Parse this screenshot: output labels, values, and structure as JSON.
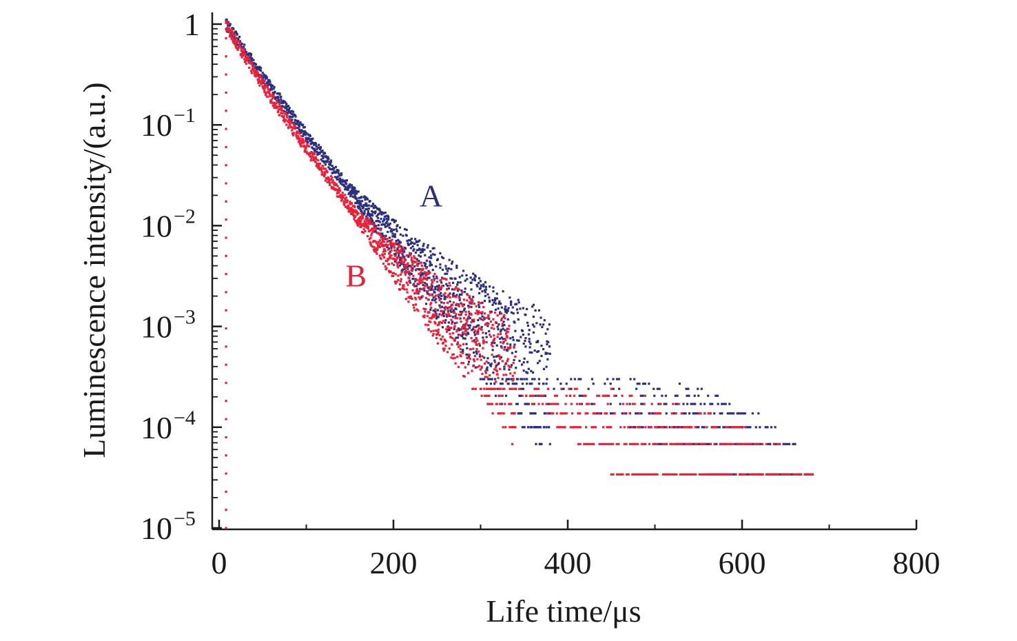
{
  "chart_data": {
    "type": "scatter",
    "title": "",
    "xlabel": "Life time/μs",
    "ylabel": "Luminescence intensity/(a.u.)",
    "xlim": [
      0,
      800
    ],
    "ylim": [
      1e-05,
      1
    ],
    "yscale": "log",
    "grid": false,
    "xticks": [
      {
        "value": 0,
        "label": "0"
      },
      {
        "value": 200,
        "label": "200"
      },
      {
        "value": 400,
        "label": "400"
      },
      {
        "value": 600,
        "label": "600"
      },
      {
        "value": 800,
        "label": "800"
      }
    ],
    "yticks": [
      {
        "value": 1,
        "base": "1",
        "exp": ""
      },
      {
        "value": 0.1,
        "base": "10",
        "exp": "−1"
      },
      {
        "value": 0.01,
        "base": "10",
        "exp": "−2"
      },
      {
        "value": 0.001,
        "base": "10",
        "exp": "−3"
      },
      {
        "value": 0.0001,
        "base": "10",
        "exp": "−4"
      },
      {
        "value": 1e-05,
        "base": "10",
        "exp": "−5"
      }
    ],
    "series": [
      {
        "name": "A",
        "color": "#2b2f7e",
        "points": [
          [
            8,
            1.0
          ],
          [
            20,
            0.72
          ],
          [
            40,
            0.4
          ],
          [
            60,
            0.23
          ],
          [
            80,
            0.135
          ],
          [
            100,
            0.08
          ],
          [
            120,
            0.048
          ],
          [
            140,
            0.029
          ],
          [
            160,
            0.018
          ],
          [
            180,
            0.0115
          ],
          [
            200,
            0.0074
          ],
          [
            220,
            0.0048
          ],
          [
            240,
            0.0032
          ],
          [
            260,
            0.0021
          ],
          [
            280,
            0.00142
          ],
          [
            300,
            0.00098
          ],
          [
            320,
            0.00068
          ],
          [
            340,
            0.00048
          ],
          [
            360,
            0.00036
          ],
          [
            380,
            0.00029
          ]
        ],
        "floor_levels": [
          3.4e-05,
          6.8e-05,
          0.0001,
          0.000137,
          0.00017,
          0.000205,
          0.00024,
          0.00027,
          0.0003
        ],
        "tail_end": 682,
        "label_at": [
          230,
          0.0155
        ]
      },
      {
        "name": "B",
        "color": "#e8213a",
        "points": [
          [
            8,
            1.0
          ],
          [
            20,
            0.65
          ],
          [
            40,
            0.34
          ],
          [
            60,
            0.185
          ],
          [
            80,
            0.104
          ],
          [
            100,
            0.059
          ],
          [
            120,
            0.034
          ],
          [
            140,
            0.0198
          ],
          [
            160,
            0.0118
          ],
          [
            180,
            0.0072
          ],
          [
            200,
            0.0045
          ],
          [
            220,
            0.0029
          ],
          [
            240,
            0.0019
          ],
          [
            260,
            0.00125
          ],
          [
            280,
            0.00085
          ],
          [
            300,
            0.00058
          ],
          [
            320,
            0.0004
          ],
          [
            340,
            0.00028
          ]
        ],
        "floor_levels": [
          3.4e-05,
          6.8e-05,
          0.0001,
          0.000137,
          0.00017,
          0.000205,
          0.00024
        ],
        "tail_end": 682,
        "label_at": [
          145,
          0.0025
        ]
      }
    ]
  }
}
